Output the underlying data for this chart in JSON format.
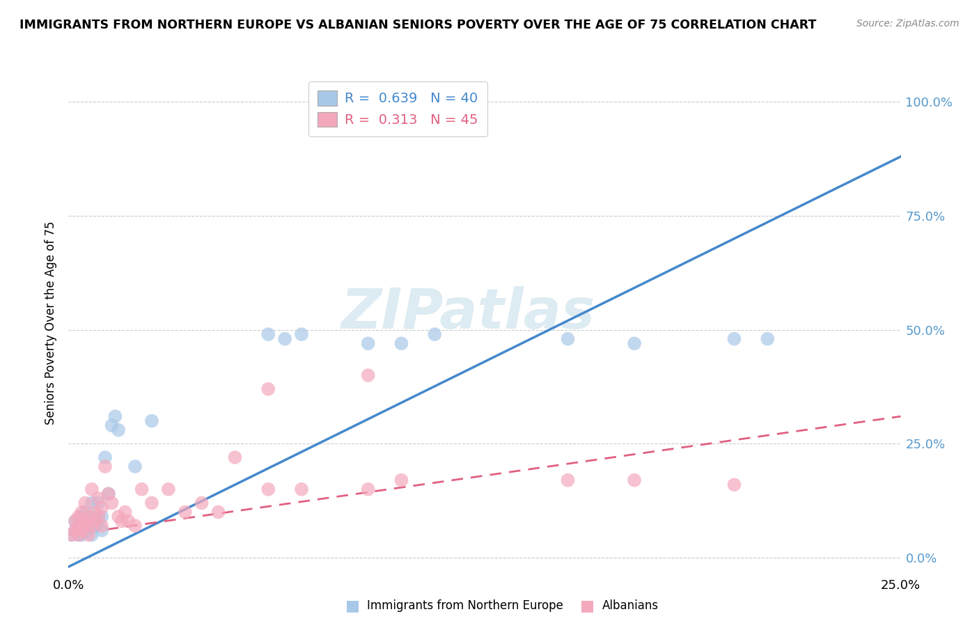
{
  "title": "IMMIGRANTS FROM NORTHERN EUROPE VS ALBANIAN SENIORS POVERTY OVER THE AGE OF 75 CORRELATION CHART",
  "source": "Source: ZipAtlas.com",
  "ylabel": "Seniors Poverty Over the Age of 75",
  "yticks_labels": [
    "0.0%",
    "25.0%",
    "50.0%",
    "75.0%",
    "100.0%"
  ],
  "ytick_vals": [
    0.0,
    0.25,
    0.5,
    0.75,
    1.0
  ],
  "xlim": [
    0.0,
    0.25
  ],
  "ylim": [
    -0.03,
    1.06
  ],
  "xtick_vals": [
    0.0,
    0.25
  ],
  "xtick_labels": [
    "0.0%",
    "25.0%"
  ],
  "blue_R": 0.639,
  "blue_N": 40,
  "pink_R": 0.313,
  "pink_N": 45,
  "blue_color": "#a8c8e8",
  "pink_color": "#f4a8bc",
  "blue_line_color": "#4488cc",
  "pink_line_color": "#e06080",
  "watermark": "ZIPatlas",
  "blue_scatter_x": [
    0.001,
    0.002,
    0.002,
    0.003,
    0.003,
    0.003,
    0.004,
    0.004,
    0.005,
    0.005,
    0.005,
    0.006,
    0.006,
    0.006,
    0.007,
    0.007,
    0.007,
    0.008,
    0.008,
    0.009,
    0.009,
    0.01,
    0.01,
    0.011,
    0.012,
    0.013,
    0.014,
    0.015,
    0.02,
    0.025,
    0.06,
    0.065,
    0.07,
    0.09,
    0.1,
    0.11,
    0.15,
    0.17,
    0.2,
    0.21
  ],
  "blue_scatter_y": [
    0.05,
    0.06,
    0.08,
    0.05,
    0.06,
    0.07,
    0.05,
    0.09,
    0.06,
    0.07,
    0.1,
    0.06,
    0.08,
    0.09,
    0.05,
    0.07,
    0.12,
    0.07,
    0.09,
    0.08,
    0.12,
    0.06,
    0.09,
    0.22,
    0.14,
    0.29,
    0.31,
    0.28,
    0.2,
    0.3,
    0.49,
    0.48,
    0.49,
    0.47,
    0.47,
    0.49,
    0.48,
    0.47,
    0.48,
    0.48
  ],
  "pink_scatter_x": [
    0.001,
    0.002,
    0.002,
    0.003,
    0.003,
    0.003,
    0.004,
    0.004,
    0.005,
    0.005,
    0.005,
    0.006,
    0.006,
    0.007,
    0.007,
    0.008,
    0.008,
    0.009,
    0.009,
    0.01,
    0.01,
    0.011,
    0.012,
    0.013,
    0.015,
    0.016,
    0.017,
    0.018,
    0.02,
    0.022,
    0.025,
    0.03,
    0.035,
    0.04,
    0.045,
    0.05,
    0.06,
    0.07,
    0.09,
    0.1,
    0.06,
    0.09,
    0.15,
    0.17,
    0.2
  ],
  "pink_scatter_y": [
    0.05,
    0.06,
    0.08,
    0.05,
    0.07,
    0.09,
    0.06,
    0.1,
    0.07,
    0.08,
    0.12,
    0.05,
    0.09,
    0.07,
    0.15,
    0.08,
    0.1,
    0.09,
    0.13,
    0.07,
    0.11,
    0.2,
    0.14,
    0.12,
    0.09,
    0.08,
    0.1,
    0.08,
    0.07,
    0.15,
    0.12,
    0.15,
    0.1,
    0.12,
    0.1,
    0.22,
    0.15,
    0.15,
    0.15,
    0.17,
    0.37,
    0.4,
    0.17,
    0.17,
    0.16
  ],
  "blue_line_x0": 0.0,
  "blue_line_y0": -0.02,
  "blue_line_x1": 0.25,
  "blue_line_y1": 0.88,
  "pink_line_x0": 0.0,
  "pink_line_y0": 0.05,
  "pink_line_x1": 0.25,
  "pink_line_y1": 0.31
}
